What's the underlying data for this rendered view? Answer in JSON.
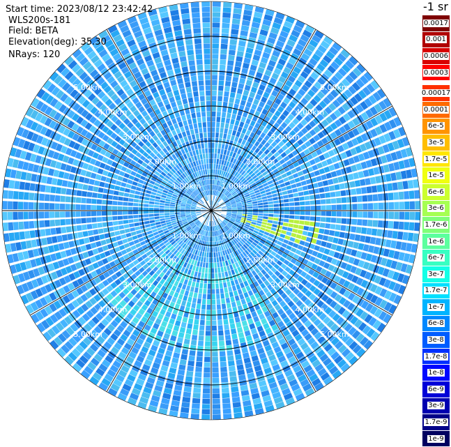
{
  "info": {
    "start_time": "Start time: 2023/08/12 23:42:42",
    "device": "WLS200s-181",
    "field": "Field: BETA",
    "elevation": "Elevation(deg): 35.30",
    "nrays": "NRays: 120"
  },
  "colorbar": {
    "unit": "-1 sr",
    "top_ticks": [
      "0.0017",
      "0.001",
      "0.0006",
      "0.0003"
    ],
    "ticks": [
      "0.00017",
      "0.0001",
      "6e-5",
      "3e-5",
      "1.7e-5",
      "1e-5",
      "6e-6",
      "3e-6",
      "1.7e-6",
      "1e-6",
      "6e-7",
      "3e-7",
      "1.7e-7",
      "1e-7",
      "6e-8",
      "3e-8",
      "1.7e-8",
      "1e-8",
      "6e-9",
      "3e-9",
      "1.7e-9",
      "1e-9"
    ],
    "top_colors": [
      "#7f0000",
      "#b00000",
      "#d80000",
      "#ff0000"
    ],
    "colors": [
      "#ff3000",
      "#ff6a00",
      "#ff9400",
      "#ffbe00",
      "#ffe600",
      "#f0ff10",
      "#ccff2e",
      "#a6ff52",
      "#80ff78",
      "#5cff9e",
      "#38ffc2",
      "#14ffe6",
      "#00e0ff",
      "#00b4ff",
      "#0088ff",
      "#005cff",
      "#0030ff",
      "#0008ff",
      "#0000d8",
      "#0000b0",
      "#000088",
      "#000060"
    ]
  },
  "chart_data": {
    "type": "heatmap",
    "subtype": "polar PPI scan",
    "field": "BETA",
    "units": "-1 sr",
    "n_rays": 120,
    "elevation_deg": 35.3,
    "range_rings_km": [
      1,
      2,
      3,
      4,
      5
    ],
    "ring_labels": [
      "1.00km",
      "2.00km",
      "3.00km",
      "4.00km",
      "5.00km"
    ],
    "max_range_km": 6.0,
    "spokes_deg": [
      0,
      30,
      60,
      90,
      120,
      150,
      180,
      210,
      240,
      270,
      300,
      330
    ],
    "dominant_value": "1e-7 to 3e-8",
    "features": [
      {
        "description": "enhanced return band",
        "azimuth_deg_range": [
          95,
          110
        ],
        "range_km": [
          0.8,
          3.0
        ],
        "value": "1.7e-6"
      },
      {
        "description": "higher backscatter south sector",
        "azimuth_deg_range": [
          150,
          230
        ],
        "range_km": [
          1.5,
          4.0
        ],
        "value": "3e-7"
      }
    ]
  }
}
